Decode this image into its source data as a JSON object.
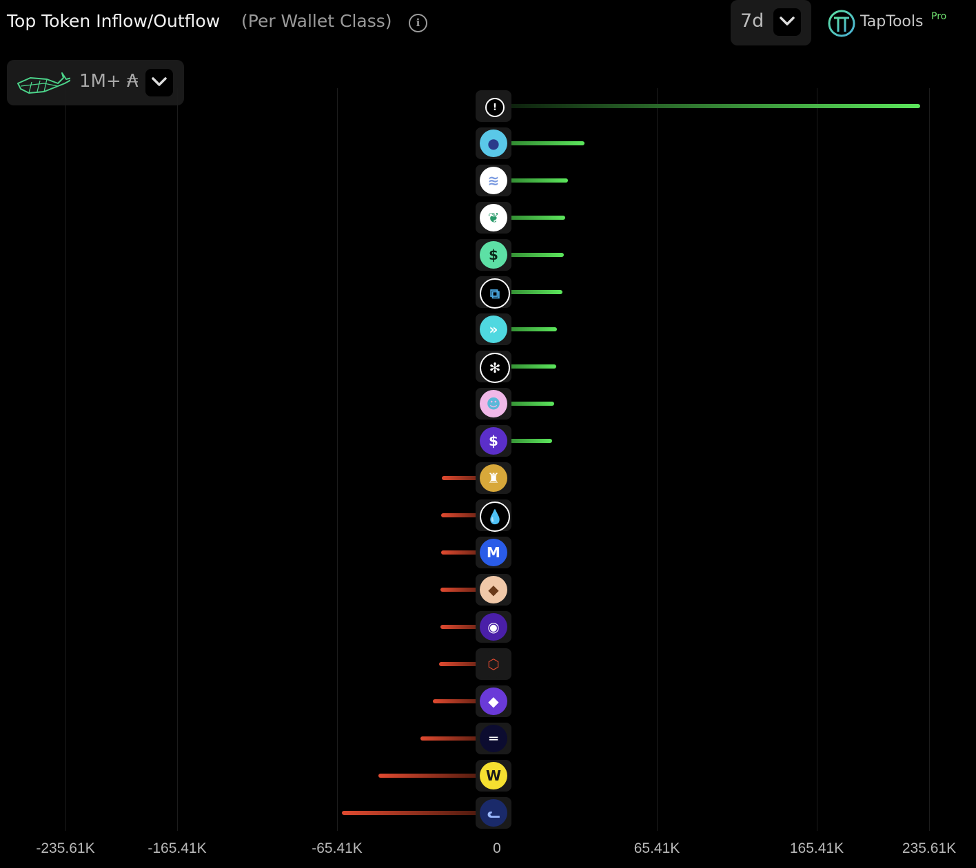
{
  "header": {
    "title": "Top Token Inflow/Outflow",
    "subtitle": "(Per Wallet Class)",
    "info_icon": "info-icon",
    "period": "7d",
    "brand": "TapTools",
    "brand_badge": "Pro"
  },
  "wallet_filter": {
    "icon": "whale-icon",
    "label": "1M+ ₳"
  },
  "colors": {
    "inflow": "#5ce65c",
    "outflow": "#e04a30",
    "grid": "#1c1c1c"
  },
  "chart_data": {
    "type": "bar",
    "orientation": "horizontal",
    "title": "Top Token Inflow/Outflow (Per Wallet Class)",
    "xlabel": "",
    "ylabel": "",
    "x_ticks": [
      -235.61,
      -165.41,
      -65.41,
      0,
      65.41,
      165.41,
      235.61
    ],
    "x_tick_labels": [
      "-235.61K",
      "-165.41K",
      "-65.41K",
      "0",
      "65.41K",
      "165.41K",
      "235.61K"
    ],
    "xlim": [
      -235.61,
      235.61
    ],
    "units": "K",
    "grid": true,
    "tokens": [
      {
        "icon": "token-exclaim-icon",
        "bg": "#000000",
        "fg": "#ffffff",
        "glyph": "!",
        "value": 230.0
      },
      {
        "icon": "token-creature-icon",
        "bg": "#5ac8e8",
        "fg": "#2a3a8a",
        "glyph": "●",
        "value": 35.8
      },
      {
        "icon": "token-waves-icon",
        "bg": "#ffffff",
        "fg": "#7a9ae0",
        "glyph": "≋",
        "value": 29.0
      },
      {
        "icon": "token-leaf-icon",
        "bg": "#ffffff",
        "fg": "#2a9a6a",
        "glyph": "❦",
        "value": 27.9
      },
      {
        "icon": "token-bolt-dollar-icon",
        "bg": "#5de0a5",
        "fg": "#0a2a1a",
        "glyph": "$",
        "value": 27.3
      },
      {
        "icon": "token-blocks-icon",
        "bg": "#000000",
        "fg": "#4aa8e0",
        "glyph": "⧉",
        "value": 26.8
      },
      {
        "icon": "token-chevrons-icon",
        "bg": "#4fd8e0",
        "fg": "#ffffff",
        "glyph": "»",
        "value": 24.5
      },
      {
        "icon": "token-snowflake-icon",
        "bg": "#000000",
        "fg": "#ffffff",
        "glyph": "✻",
        "value": 24.2
      },
      {
        "icon": "token-mascot-icon",
        "bg": "#f0b8e8",
        "fg": "#5ab8d8",
        "glyph": "☻",
        "value": 23.4
      },
      {
        "icon": "token-dollar-coin-icon",
        "bg": "#5b2fc9",
        "fg": "#ffffff",
        "glyph": "$",
        "value": 22.6
      },
      {
        "icon": "token-pillar-icon",
        "bg": "#d8a83a",
        "fg": "#ffffff",
        "glyph": "♜",
        "value": -22.6
      },
      {
        "icon": "token-drop-icon",
        "bg": "#000000",
        "fg": "#3a9ae0",
        "glyph": "💧",
        "value": -22.8
      },
      {
        "icon": "token-m-icon",
        "bg": "#2a5ce8",
        "fg": "#ffffff",
        "glyph": "M",
        "value": -22.8
      },
      {
        "icon": "token-cake-icon",
        "bg": "#f0c8a8",
        "fg": "#6a3a1a",
        "glyph": "◆",
        "value": -23.1
      },
      {
        "icon": "token-eye-icon",
        "bg": "#4a1fa8",
        "fg": "#ffffff",
        "glyph": "◉",
        "value": -23.1
      },
      {
        "icon": "token-bird-icon",
        "bg": "#1a1a1a",
        "fg": "#e04a30",
        "glyph": "⬡",
        "value": -23.7
      },
      {
        "icon": "token-eth-icon",
        "bg": "#6a3ad8",
        "fg": "#ffffff",
        "glyph": "◆",
        "value": -26.2
      },
      {
        "icon": "token-stripes-icon",
        "bg": "#0c0c30",
        "fg": "#ffffff",
        "glyph": "═",
        "value": -31.3
      },
      {
        "icon": "token-w-icon",
        "bg": "#f5e030",
        "fg": "#1a1a1a",
        "glyph": "W",
        "value": -48.5
      },
      {
        "icon": "token-cat-icon",
        "bg": "#1a2a6a",
        "fg": "#9ab8ff",
        "glyph": "ᓚ",
        "value": -63.4
      }
    ]
  }
}
